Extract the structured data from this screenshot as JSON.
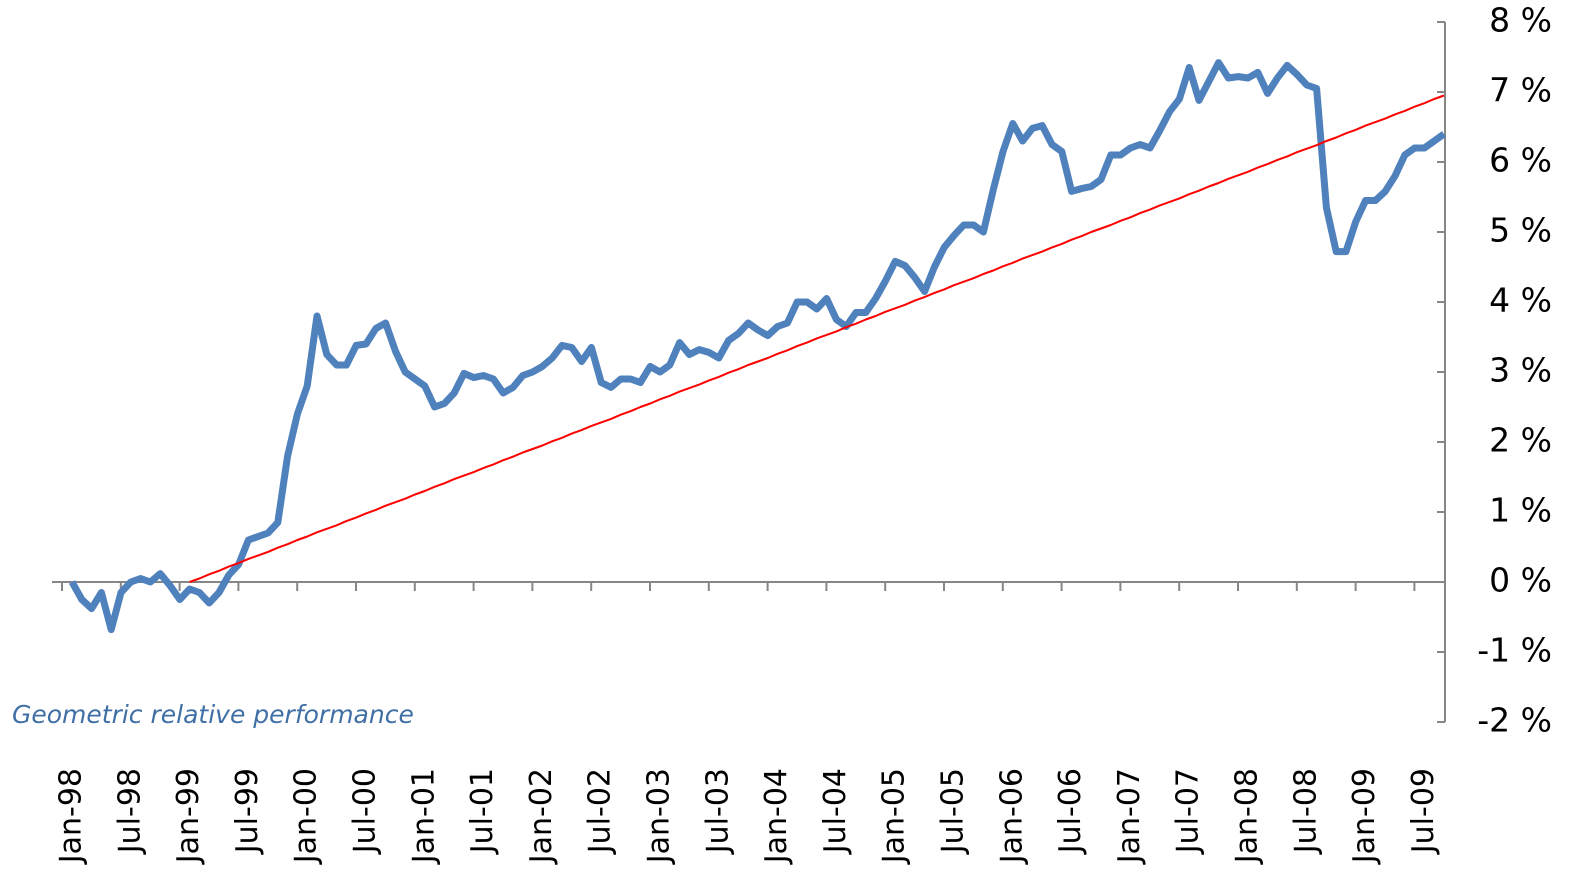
{
  "chart_data": {
    "type": "line",
    "categories": [
      "Jan-98",
      null,
      null,
      null,
      null,
      null,
      "Jul-98",
      null,
      null,
      null,
      null,
      null,
      "Jan-99",
      null,
      null,
      null,
      null,
      null,
      "Jul-99",
      null,
      null,
      null,
      null,
      null,
      "Jan-00",
      null,
      null,
      null,
      null,
      null,
      "Jul-00",
      null,
      null,
      null,
      null,
      null,
      "Jan-01",
      null,
      null,
      null,
      null,
      null,
      "Jul-01",
      null,
      null,
      null,
      null,
      null,
      "Jan-02",
      null,
      null,
      null,
      null,
      null,
      "Jul-02",
      null,
      null,
      null,
      null,
      null,
      "Jan-03",
      null,
      null,
      null,
      null,
      null,
      "Jul-03",
      null,
      null,
      null,
      null,
      null,
      "Jan-04",
      null,
      null,
      null,
      null,
      null,
      "Jul-04",
      null,
      null,
      null,
      null,
      null,
      "Jan-05",
      null,
      null,
      null,
      null,
      null,
      "Jul-05",
      null,
      null,
      null,
      null,
      null,
      "Jan-06",
      null,
      null,
      null,
      null,
      null,
      "Jul-06",
      null,
      null,
      null,
      null,
      null,
      "Jan-07",
      null,
      null,
      null,
      null,
      null,
      "Jul-07",
      null,
      null,
      null,
      null,
      null,
      "Jan-08",
      null,
      null,
      null,
      null,
      null,
      "Jul-08",
      null,
      null,
      null,
      null,
      null,
      "Jan-09",
      null,
      null,
      null,
      null,
      null,
      "Jul-09",
      null,
      null
    ],
    "series": [
      {
        "name": "Geometric relative performance",
        "color": "#4f81bd",
        "values": [
          0.0,
          -0.25,
          -0.38,
          -0.15,
          -0.68,
          -0.15,
          0.0,
          0.05,
          0.0,
          0.12,
          -0.05,
          -0.25,
          -0.1,
          -0.15,
          -0.3,
          -0.15,
          0.1,
          0.25,
          0.6,
          0.65,
          0.7,
          0.85,
          1.8,
          2.4,
          2.8,
          3.8,
          3.25,
          3.1,
          3.1,
          3.38,
          3.4,
          3.62,
          3.7,
          3.3,
          3.0,
          2.9,
          2.8,
          2.5,
          2.55,
          2.7,
          2.98,
          2.92,
          2.95,
          2.9,
          2.7,
          2.78,
          2.95,
          3.0,
          3.08,
          3.2,
          3.38,
          3.35,
          3.15,
          3.35,
          2.85,
          2.78,
          2.9,
          2.9,
          2.85,
          3.08,
          3.0,
          3.1,
          3.42,
          3.25,
          3.32,
          3.28,
          3.2,
          3.45,
          3.55,
          3.7,
          3.6,
          3.52,
          3.65,
          3.7,
          4.0,
          4.0,
          3.9,
          4.05,
          3.75,
          3.65,
          3.85,
          3.85,
          4.05,
          4.3,
          4.58,
          4.52,
          4.35,
          4.15,
          4.5,
          4.78,
          4.95,
          5.1,
          5.1,
          5.0,
          5.6,
          6.15,
          6.55,
          6.3,
          6.48,
          6.52,
          6.25,
          6.15,
          5.58,
          5.62,
          5.65,
          5.75,
          6.1,
          6.1,
          6.2,
          6.25,
          6.2,
          6.45,
          6.72,
          6.9,
          7.35,
          6.88,
          7.15,
          7.42,
          7.2,
          7.22,
          7.2,
          7.28,
          6.98,
          7.2,
          7.38,
          7.25,
          7.1,
          7.05,
          5.35,
          4.72,
          4.72,
          5.15,
          5.45,
          5.45,
          5.58,
          5.8,
          6.1,
          6.2,
          6.2,
          6.3,
          6.4
        ]
      },
      {
        "color": "#ff0000",
        "values": [
          null,
          null,
          null,
          null,
          null,
          null,
          null,
          null,
          null,
          null,
          null,
          null,
          0,
          0.05,
          0.11,
          0.16,
          0.22,
          0.27,
          0.33,
          0.38,
          0.43,
          0.49,
          0.54,
          0.6,
          0.65,
          0.71,
          0.76,
          0.81,
          0.87,
          0.92,
          0.98,
          1.03,
          1.09,
          1.14,
          1.19,
          1.25,
          1.3,
          1.36,
          1.41,
          1.47,
          1.52,
          1.57,
          1.63,
          1.68,
          1.74,
          1.79,
          1.85,
          1.9,
          1.95,
          2.01,
          2.06,
          2.12,
          2.17,
          2.23,
          2.28,
          2.33,
          2.39,
          2.44,
          2.5,
          2.55,
          2.61,
          2.66,
          2.72,
          2.77,
          2.82,
          2.88,
          2.93,
          2.99,
          3.04,
          3.1,
          3.15,
          3.2,
          3.26,
          3.31,
          3.37,
          3.42,
          3.48,
          3.53,
          3.58,
          3.64,
          3.69,
          3.75,
          3.8,
          3.86,
          3.91,
          3.96,
          4.02,
          4.07,
          4.13,
          4.18,
          4.24,
          4.29,
          4.34,
          4.4,
          4.45,
          4.51,
          4.56,
          4.62,
          4.67,
          4.72,
          4.78,
          4.83,
          4.89,
          4.94,
          5.0,
          5.05,
          5.1,
          5.16,
          5.21,
          5.27,
          5.32,
          5.38,
          5.43,
          5.48,
          5.54,
          5.59,
          5.65,
          5.7,
          5.76,
          5.81,
          5.86,
          5.92,
          5.97,
          6.03,
          6.08,
          6.14,
          6.19,
          6.24,
          6.3,
          6.35,
          6.41,
          6.46,
          6.52,
          6.57,
          6.62,
          6.68,
          6.73,
          6.79,
          6.84,
          6.9,
          6.95
        ]
      }
    ],
    "ylim": [
      -2,
      8
    ],
    "yticks": [
      {
        "value": -2,
        "label": "-2 %"
      },
      {
        "value": -1,
        "label": "-1 %"
      },
      {
        "value": 0,
        "label": "0 %"
      },
      {
        "value": 1,
        "label": "1 %"
      },
      {
        "value": 2,
        "label": "2 %"
      },
      {
        "value": 3,
        "label": "3 %"
      },
      {
        "value": 4,
        "label": "4 %"
      },
      {
        "value": 5,
        "label": "5 %"
      },
      {
        "value": 6,
        "label": "6 %"
      },
      {
        "value": 7,
        "label": "7 %"
      },
      {
        "value": 8,
        "label": "8 %"
      }
    ],
    "y_axis_side": "right"
  }
}
